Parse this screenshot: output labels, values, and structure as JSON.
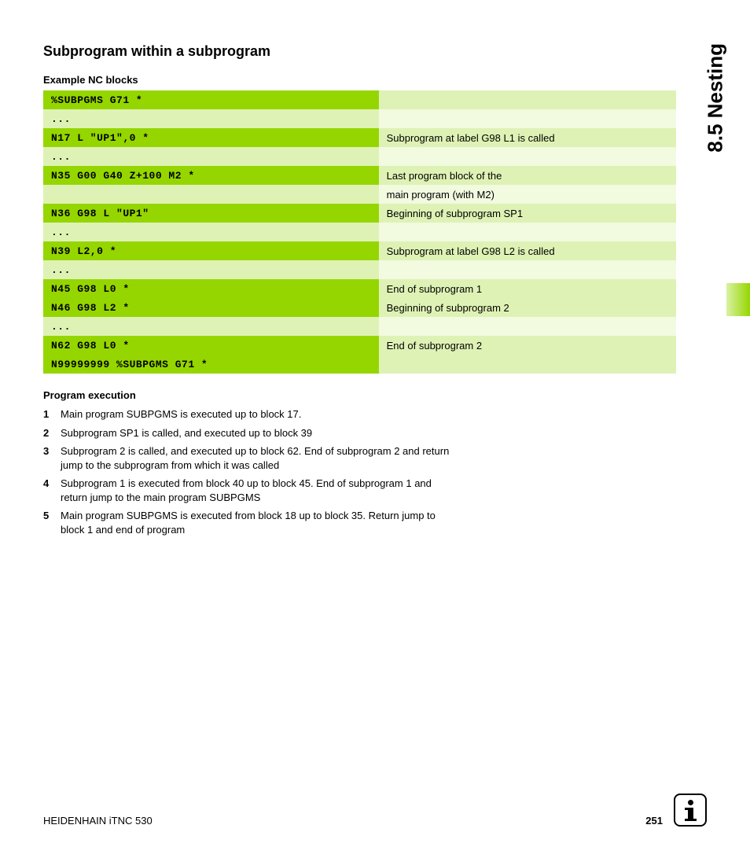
{
  "headings": {
    "main": "Subprogram within a subprogram",
    "example": "Example NC blocks",
    "execution": "Program execution"
  },
  "side_title": "8.5 Nesting",
  "colors": {
    "code_dark_bg": "#95d600",
    "desc_dark_bg": "#dff2b5",
    "code_light_bg": "#dff2b5",
    "desc_light_bg": "#f2fae0"
  },
  "nc_rows": [
    {
      "shade": "dark",
      "code": "%SUBPGMS G71 *",
      "desc": ""
    },
    {
      "shade": "light",
      "code": "...",
      "desc": ""
    },
    {
      "shade": "dark",
      "code": "N17 L \"UP1\",0 *",
      "desc": "Subprogram at label G98 L1 is called"
    },
    {
      "shade": "light",
      "code": "...",
      "desc": ""
    },
    {
      "shade": "dark",
      "code": "N35 G00 G40 Z+100 M2 *",
      "desc": "Last program block of the"
    },
    {
      "shade": "light",
      "code": "",
      "desc": "main program (with M2)"
    },
    {
      "shade": "dark",
      "code": "N36 G98 L \"UP1\"",
      "desc": "Beginning of subprogram SP1"
    },
    {
      "shade": "light",
      "code": "...",
      "desc": ""
    },
    {
      "shade": "dark",
      "code": "N39 L2,0 *",
      "desc": "Subprogram at label G98 L2 is called"
    },
    {
      "shade": "light",
      "code": "...",
      "desc": ""
    },
    {
      "shade": "dark",
      "code": "N45 G98 L0 *",
      "desc": "End of subprogram 1"
    },
    {
      "shade": "dark",
      "code": "N46 G98 L2 *",
      "desc": "Beginning of subprogram 2"
    },
    {
      "shade": "light",
      "code": "...",
      "desc": ""
    },
    {
      "shade": "dark",
      "code": "N62 G98 L0 *",
      "desc": "End of subprogram 2"
    },
    {
      "shade": "dark",
      "code": "N99999999 %SUBPGMS G71 *",
      "desc": ""
    }
  ],
  "execution_steps": [
    {
      "num": "1",
      "text": "Main program SUBPGMS is executed up to block 17."
    },
    {
      "num": "2",
      "text": "Subprogram SP1 is called, and executed up to block 39"
    },
    {
      "num": "3",
      "text": "Subprogram 2 is called, and executed up to block 62. End of subprogram 2 and return jump to the subprogram from which it was called"
    },
    {
      "num": "4",
      "text": "Subprogram 1 is executed from block 40 up to block 45. End of subprogram 1 and return jump to the main program SUBPGMS"
    },
    {
      "num": "5",
      "text": "Main program SUBPGMS is executed from block 18 up to block 35. Return jump to block 1 and end of program"
    }
  ],
  "footer": {
    "left": "HEIDENHAIN iTNC 530",
    "page": "251"
  }
}
